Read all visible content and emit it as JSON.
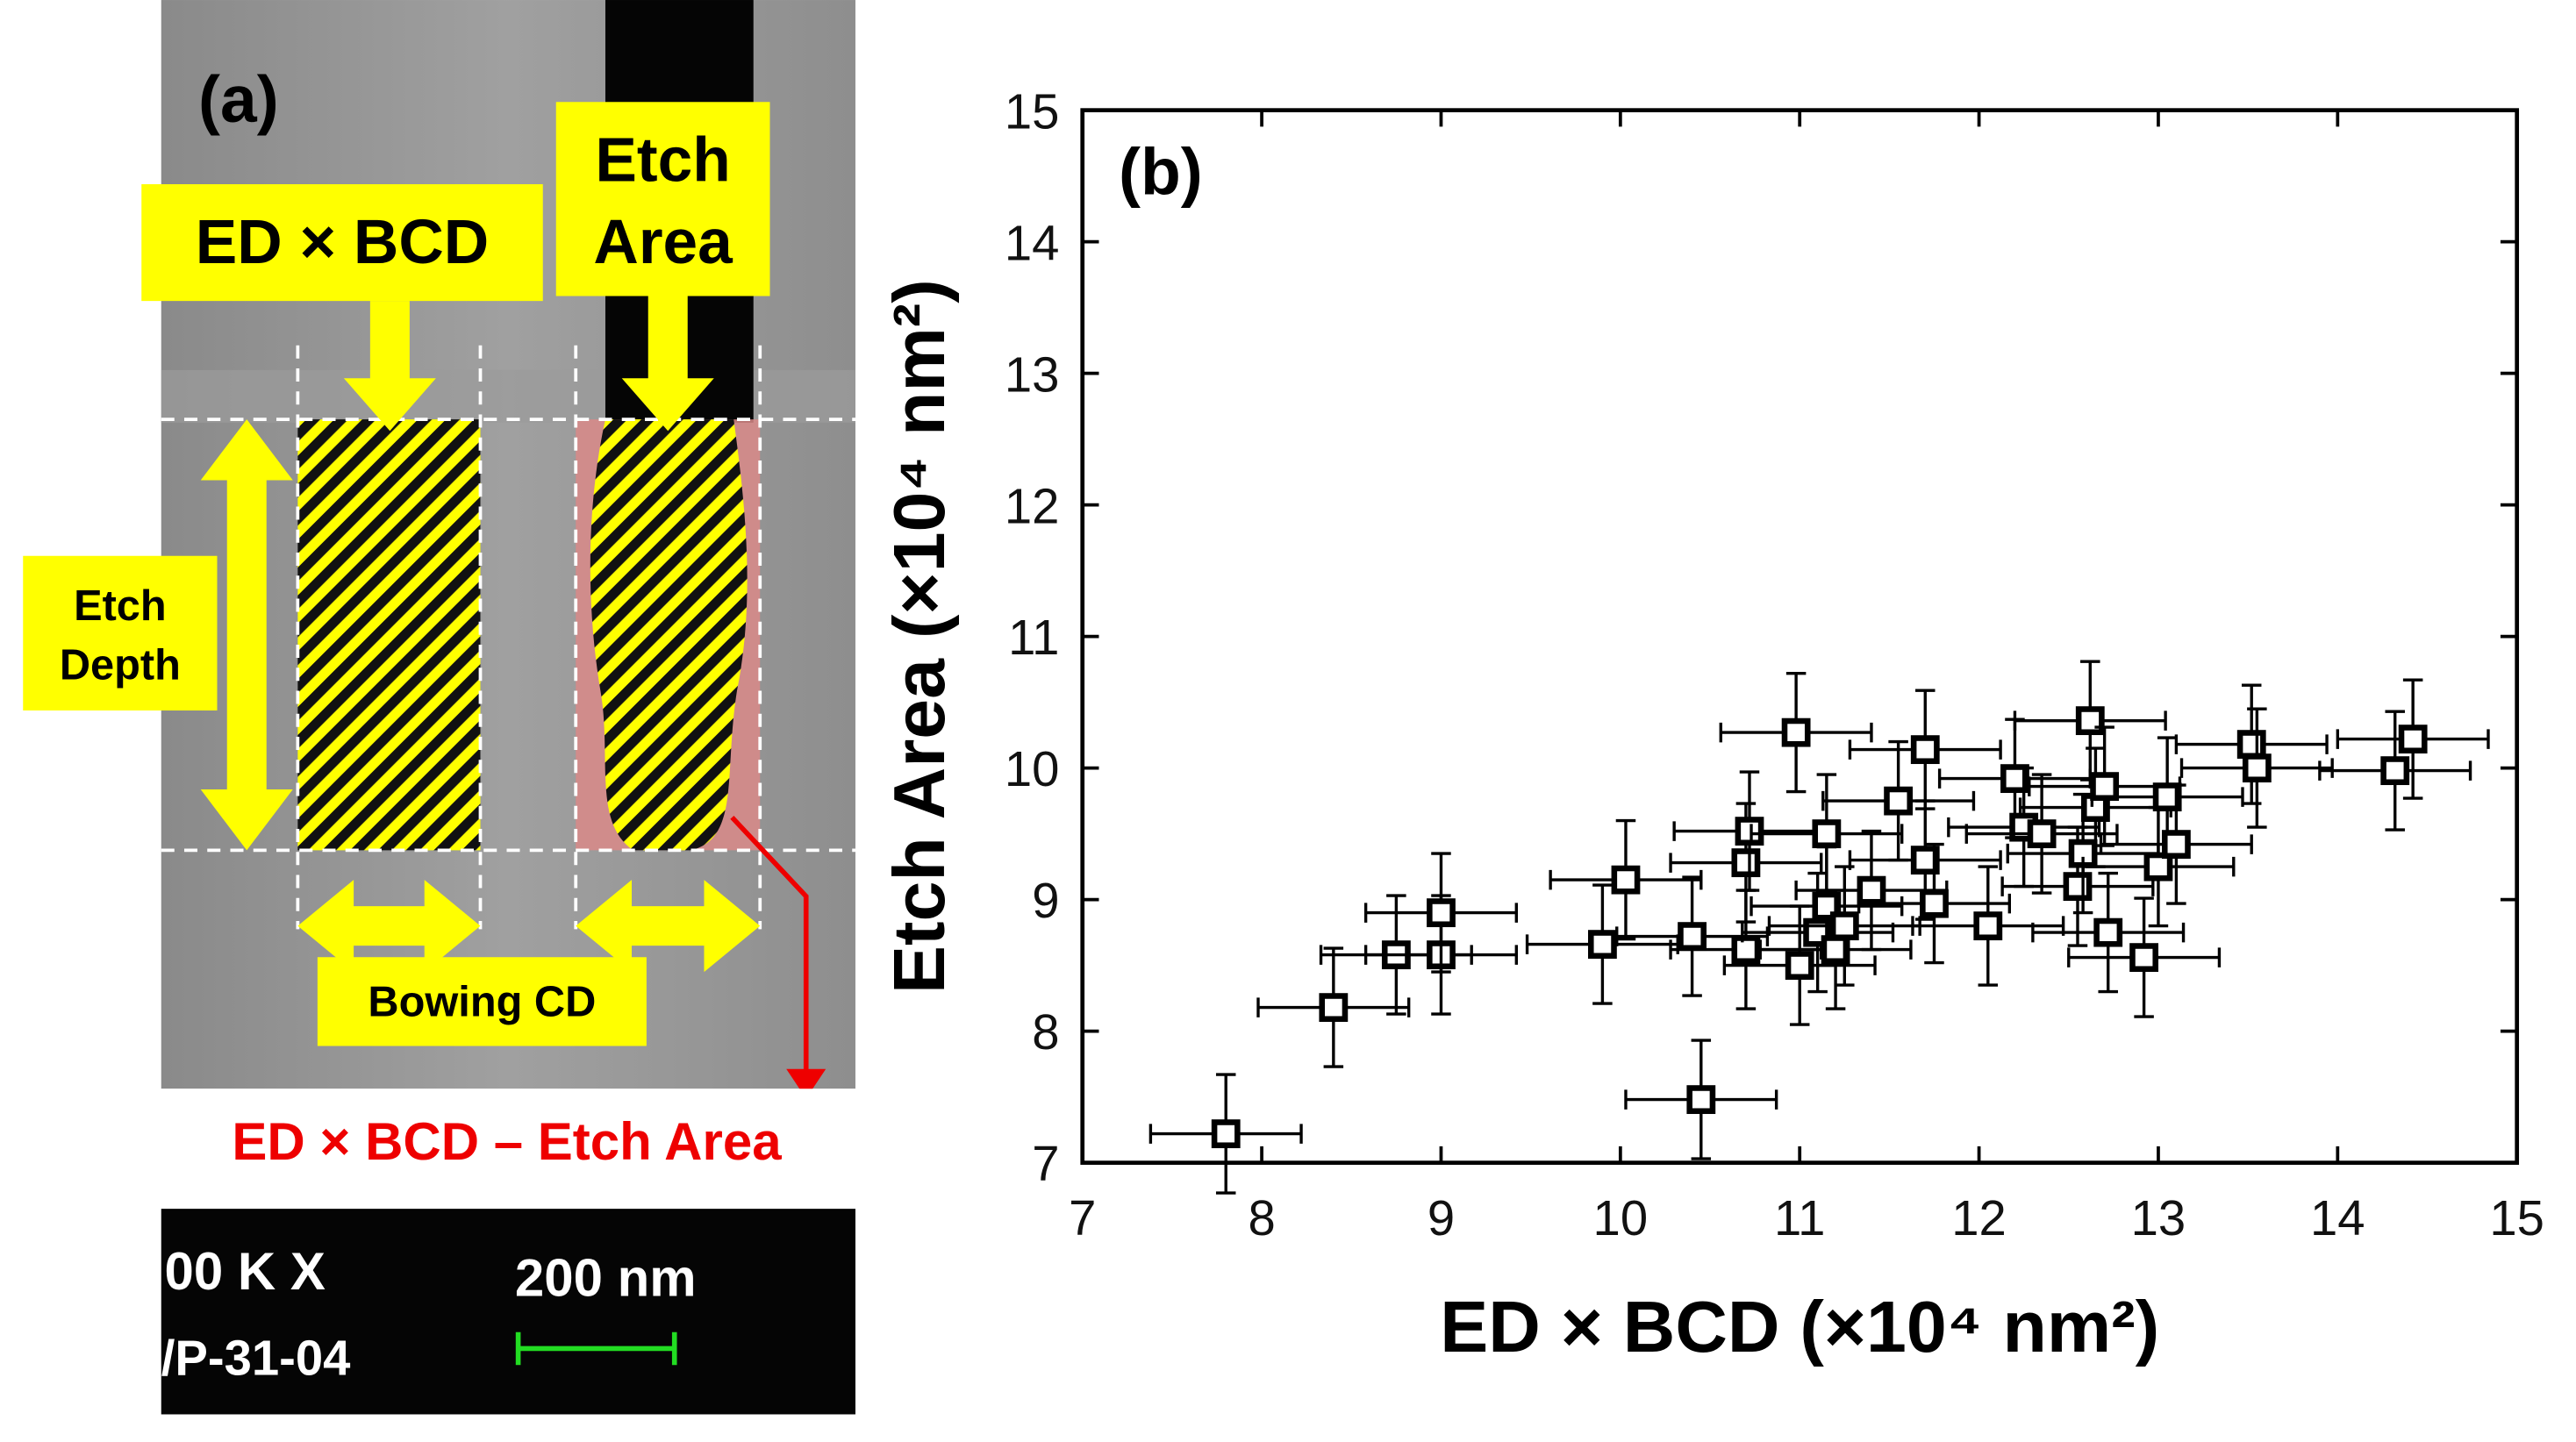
{
  "panel_a": {
    "label": "(a)",
    "etch_area_box": [
      "Etch",
      "Area"
    ],
    "ed_bcd_box": "ED × BCD",
    "etch_depth_box": [
      "Etch",
      "Depth"
    ],
    "bowing_cd_box": "Bowing CD",
    "difference_label": "ED × BCD – Etch Area",
    "sem_magnification": "00 K X",
    "sem_scale": "200 nm",
    "sem_id": "/P-31-04"
  },
  "chart_data": {
    "type": "scatter",
    "panel_label": "(b)",
    "x_label": "ED × BCD (×10⁴ nm²)",
    "y_label": "Etch Area (×10⁴ nm²)",
    "xlim": [
      7,
      15
    ],
    "ylim": [
      7,
      15
    ],
    "xticks": [
      7,
      8,
      9,
      10,
      11,
      12,
      13,
      14,
      15
    ],
    "yticks": [
      7,
      8,
      9,
      10,
      11,
      12,
      13,
      14,
      15
    ],
    "color": "#000000",
    "x_error": 0.42,
    "y_error": 0.45,
    "x": [
      7.8,
      8.4,
      8.75,
      9.0,
      9.0,
      9.9,
      10.03,
      10.4,
      10.45,
      10.7,
      10.7,
      10.72,
      10.98,
      11.0,
      11.1,
      11.15,
      11.15,
      11.2,
      11.25,
      11.4,
      11.55,
      11.7,
      11.7,
      11.75,
      12.05,
      12.2,
      12.25,
      12.35,
      12.55,
      12.58,
      12.62,
      12.65,
      12.7,
      12.72,
      12.92,
      13.0,
      13.05,
      13.1,
      13.52,
      13.55,
      14.32,
      14.42
    ],
    "values": [
      7.22,
      8.18,
      8.58,
      8.58,
      8.9,
      8.66,
      9.15,
      8.72,
      7.48,
      8.62,
      9.28,
      9.52,
      10.27,
      8.5,
      8.75,
      8.95,
      9.5,
      8.62,
      8.8,
      9.07,
      9.75,
      10.14,
      9.3,
      8.97,
      8.8,
      9.92,
      9.55,
      9.5,
      9.1,
      9.35,
      10.36,
      9.7,
      9.86,
      8.75,
      8.56,
      9.25,
      9.78,
      9.42,
      10.18,
      10.0,
      9.98,
      10.22
    ]
  }
}
